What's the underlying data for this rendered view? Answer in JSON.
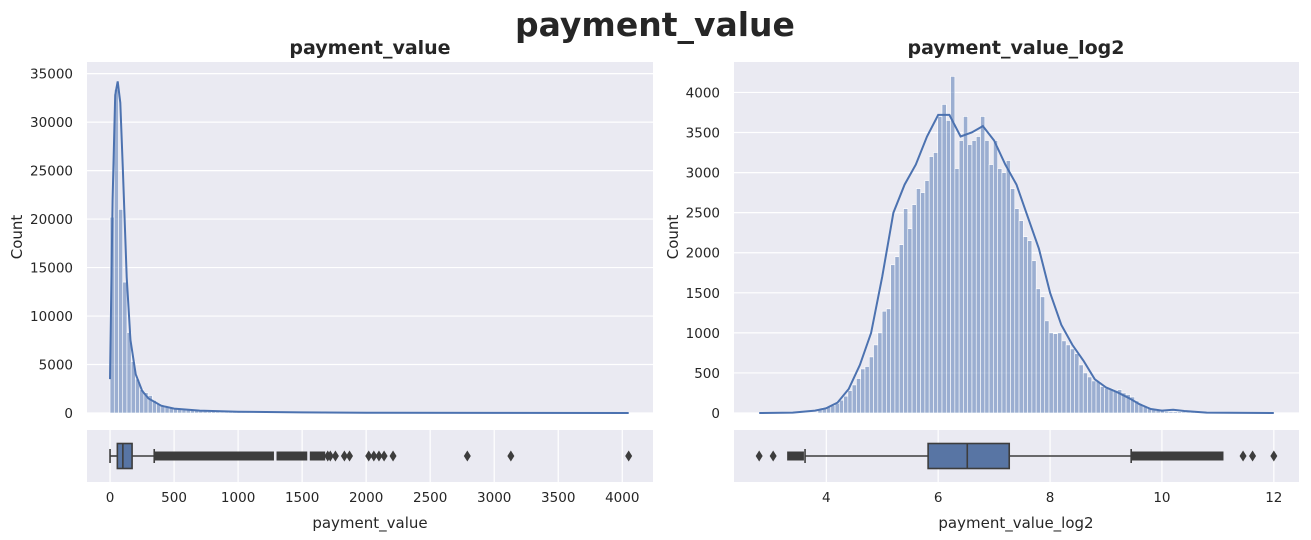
{
  "figure": {
    "suptitle": "payment_value"
  },
  "colors": {
    "axes_bg": "#eaeaf2",
    "grid": "#ffffff",
    "bar": "#4c72b0",
    "kde": "#4c72b0",
    "box": "#5875a4",
    "box_edge": "#3d3d3d"
  },
  "chart_data": [
    {
      "type": "histogram",
      "title": "payment_value",
      "xlabel": "",
      "ylabel": "Count",
      "xlim": [
        -180,
        4240
      ],
      "ylim": [
        0,
        36200
      ],
      "yticks": [
        0,
        5000,
        10000,
        15000,
        20000,
        25000,
        30000,
        35000
      ],
      "grid": true,
      "kde": true,
      "bin_start": 0,
      "bin_width": 33,
      "counts": [
        20200,
        33400,
        21000,
        13500,
        8300,
        5300,
        3500,
        2400,
        2100,
        1800,
        1300,
        1000,
        800,
        650,
        500,
        430,
        380,
        330,
        290,
        320,
        250,
        210,
        180,
        150,
        140,
        120,
        100,
        95,
        90,
        85,
        80,
        75,
        70,
        65,
        60,
        55,
        50,
        45,
        40,
        36,
        32,
        28,
        25,
        22,
        20,
        18,
        16,
        14,
        12,
        10,
        9,
        8,
        7,
        6,
        5,
        5,
        4,
        4,
        3,
        3,
        3,
        2,
        2,
        2,
        2,
        1,
        1,
        1,
        1,
        1,
        1,
        1,
        1,
        1,
        1,
        1,
        1,
        1,
        1,
        1,
        1,
        1,
        1,
        1,
        1,
        1,
        1,
        1,
        1,
        1,
        1,
        1,
        1,
        1,
        1,
        1,
        1,
        1,
        1,
        1,
        1,
        1,
        1,
        1,
        1,
        1,
        1,
        1,
        1,
        1,
        1,
        1,
        1,
        1,
        1,
        1,
        1,
        1,
        1,
        1,
        1,
        1
      ],
      "kde_points": [
        [
          0,
          3500
        ],
        [
          20,
          22000
        ],
        [
          40,
          32800
        ],
        [
          60,
          34200
        ],
        [
          80,
          32000
        ],
        [
          100,
          25000
        ],
        [
          130,
          14000
        ],
        [
          160,
          7500
        ],
        [
          200,
          4000
        ],
        [
          250,
          2300
        ],
        [
          300,
          1500
        ],
        [
          400,
          750
        ],
        [
          500,
          450
        ],
        [
          700,
          250
        ],
        [
          1000,
          130
        ],
        [
          1500,
          60
        ],
        [
          2000,
          30
        ],
        [
          3000,
          10
        ],
        [
          4050,
          0
        ]
      ]
    },
    {
      "type": "boxplot",
      "xlabel": "payment_value",
      "xlim": [
        -180,
        4240
      ],
      "xticks": [
        0,
        500,
        1000,
        1500,
        2000,
        2500,
        3000,
        3500,
        4000
      ],
      "whisker_low": 0,
      "q1": 57,
      "median": 100,
      "q3": 172,
      "whisker_high": 345,
      "outlier_dense_ranges": [
        [
          345,
          1280
        ],
        [
          1300,
          1540
        ],
        [
          1560,
          1680
        ]
      ],
      "outliers": [
        1700,
        1720,
        1760,
        1830,
        1870,
        2020,
        2060,
        2100,
        2140,
        2210,
        2790,
        3130,
        4050
      ]
    },
    {
      "type": "histogram",
      "title": "payment_value_log2",
      "xlabel": "",
      "ylabel": "Count",
      "xlim": [
        2.35,
        12.45
      ],
      "ylim": [
        0,
        4380
      ],
      "yticks": [
        0,
        500,
        1000,
        1500,
        2000,
        2500,
        3000,
        3500,
        4000
      ],
      "grid": true,
      "kde": true,
      "bin_start": 3.85,
      "bin_width": 0.0765,
      "counts": [
        50,
        65,
        80,
        95,
        120,
        160,
        210,
        280,
        350,
        430,
        550,
        580,
        700,
        850,
        1000,
        1270,
        1300,
        1850,
        1950,
        2100,
        2550,
        2300,
        2600,
        2800,
        2750,
        2900,
        3200,
        3250,
        3700,
        3850,
        3650,
        4200,
        3050,
        3400,
        3700,
        3350,
        3400,
        3450,
        3700,
        3400,
        3100,
        3400,
        3050,
        3000,
        3150,
        2800,
        2550,
        2400,
        2200,
        2150,
        1900,
        1550,
        1450,
        1150,
        1000,
        990,
        1000,
        900,
        850,
        800,
        740,
        600,
        500,
        450,
        400,
        390,
        330,
        310,
        300,
        280,
        290,
        250,
        230,
        200,
        150,
        110,
        80,
        55,
        40,
        30,
        25,
        20,
        18,
        16,
        15,
        14,
        13,
        12,
        10,
        8
      ],
      "kde_points": [
        [
          2.8,
          0
        ],
        [
          3.4,
          5
        ],
        [
          3.8,
          30
        ],
        [
          4.0,
          60
        ],
        [
          4.2,
          130
        ],
        [
          4.4,
          300
        ],
        [
          4.6,
          600
        ],
        [
          4.8,
          1000
        ],
        [
          5.0,
          1700
        ],
        [
          5.2,
          2500
        ],
        [
          5.4,
          2850
        ],
        [
          5.6,
          3100
        ],
        [
          5.8,
          3450
        ],
        [
          6.0,
          3720
        ],
        [
          6.2,
          3720
        ],
        [
          6.4,
          3450
        ],
        [
          6.6,
          3500
        ],
        [
          6.8,
          3580
        ],
        [
          7.0,
          3400
        ],
        [
          7.2,
          3100
        ],
        [
          7.4,
          2850
        ],
        [
          7.6,
          2450
        ],
        [
          7.8,
          2050
        ],
        [
          8.0,
          1500
        ],
        [
          8.2,
          1100
        ],
        [
          8.4,
          850
        ],
        [
          8.6,
          650
        ],
        [
          8.8,
          420
        ],
        [
          9.0,
          320
        ],
        [
          9.2,
          260
        ],
        [
          9.4,
          190
        ],
        [
          9.6,
          110
        ],
        [
          9.8,
          50
        ],
        [
          10.0,
          30
        ],
        [
          10.2,
          40
        ],
        [
          10.4,
          25
        ],
        [
          10.8,
          5
        ],
        [
          12.0,
          0
        ]
      ]
    },
    {
      "type": "boxplot",
      "xlabel": "payment_value_log2",
      "xlim": [
        2.35,
        12.45
      ],
      "xticks": [
        4,
        6,
        8,
        10,
        12
      ],
      "whisker_low": 3.62,
      "q1": 5.82,
      "median": 6.52,
      "q3": 7.27,
      "whisker_high": 9.45,
      "outlier_dense_ranges": [
        [
          3.3,
          3.6
        ],
        [
          9.45,
          11.1
        ]
      ],
      "outliers": [
        2.8,
        3.05,
        11.45,
        11.62,
        12.0
      ]
    }
  ]
}
